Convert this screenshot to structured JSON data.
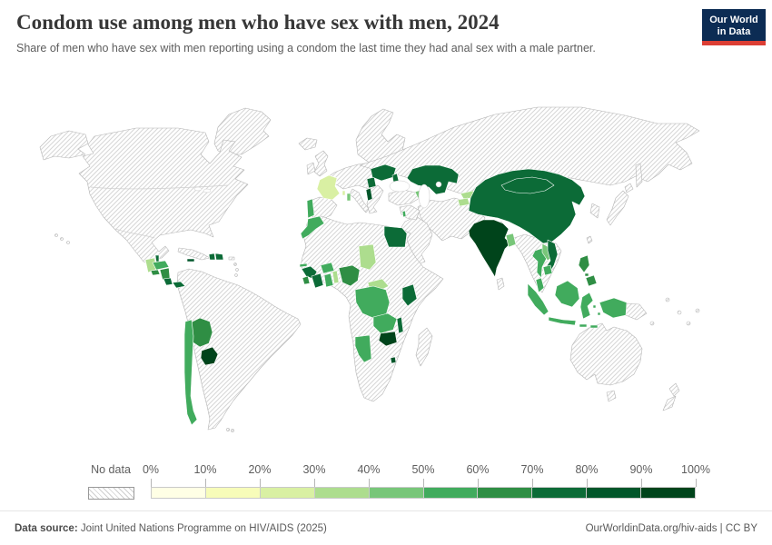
{
  "header": {
    "title": "Condom use among men who have sex with men, 2024",
    "subtitle": "Share of men who have sex with men reporting using a condom the last time they had anal sex with a male partner.",
    "logo": {
      "line1": "Our World",
      "line2": "in Data",
      "bg_color": "#0c2c54",
      "accent_color": "#dc3e34"
    }
  },
  "legend": {
    "no_data_label": "No data",
    "tick_labels": [
      "0%",
      "10%",
      "20%",
      "30%",
      "40%",
      "50%",
      "60%",
      "70%",
      "80%",
      "90%",
      "100%"
    ],
    "colors": [
      "#ffffe5",
      "#f7fcb9",
      "#d9f0a3",
      "#addd8e",
      "#78c679",
      "#41ab5d",
      "#2f8e44",
      "#0c6b37",
      "#02562a",
      "#00441b"
    ]
  },
  "footer": {
    "source_label": "Data source:",
    "source_text": " Joint United Nations Programme on HIV/AIDS (2025)",
    "credit": "OurWorldinData.org/hiv-aids | CC BY"
  },
  "chart_data": {
    "type": "choropleth",
    "title": "Condom use among men who have sex with men, 2024",
    "unit": "%",
    "bins": {
      "labels": [
        "0-10%",
        "10-20%",
        "20-30%",
        "30-40%",
        "40-50%",
        "50-60%",
        "60-70%",
        "70-80%",
        "80-90%",
        "90-100%"
      ],
      "colors": [
        "#ffffe5",
        "#f7fcb9",
        "#d9f0a3",
        "#addd8e",
        "#78c679",
        "#41ab5d",
        "#2f8e44",
        "#0c6b37",
        "#02562a",
        "#00441b"
      ],
      "no_data": "hatched"
    },
    "countries": [
      {
        "id": "france",
        "name": "France",
        "bin": "20-30%",
        "color": "#d9f0a3"
      },
      {
        "id": "sardinia",
        "name": "Sardinia (island)",
        "bin": "40-50%",
        "color": "#78c679"
      },
      {
        "id": "portugal",
        "name": "Portugal",
        "bin": "50-60%",
        "color": "#41ab5d"
      },
      {
        "id": "serbia",
        "name": "Serbia",
        "bin": "70-80%",
        "color": "#0c6b37"
      },
      {
        "id": "albania",
        "name": "Albania",
        "bin": "80-90%",
        "color": "#02562a"
      },
      {
        "id": "ukraine",
        "name": "Ukraine",
        "bin": "70-80%",
        "color": "#0c6b37"
      },
      {
        "id": "moldova",
        "name": "Moldova",
        "bin": "70-80%",
        "color": "#0c6b37"
      },
      {
        "id": "kazakhstan",
        "name": "Kazakhstan",
        "bin": "70-80%",
        "color": "#0c6b37"
      },
      {
        "id": "azerbaijan",
        "name": "Azerbaijan",
        "bin": "40-50%",
        "color": "#78c679"
      },
      {
        "id": "kyrgyzstan",
        "name": "Kyrgyzstan",
        "bin": "30-40%",
        "color": "#addd8e"
      },
      {
        "id": "tajikistan",
        "name": "Tajikistan",
        "bin": "30-40%",
        "color": "#addd8e"
      },
      {
        "id": "mongolia",
        "name": "Mongolia",
        "bin": "70-80%",
        "color": "#0c6b37"
      },
      {
        "id": "china",
        "name": "China",
        "bin": "70-80%",
        "color": "#0c6b37"
      },
      {
        "id": "india",
        "name": "India",
        "bin": "90-100%",
        "color": "#00441b"
      },
      {
        "id": "bangladesh",
        "name": "Bangladesh",
        "bin": "40-50%",
        "color": "#78c679"
      },
      {
        "id": "thailand",
        "name": "Thailand",
        "bin": "50-60%",
        "color": "#41ab5d"
      },
      {
        "id": "laos",
        "name": "Laos",
        "bin": "40-50%",
        "color": "#78c679"
      },
      {
        "id": "vietnam",
        "name": "Vietnam",
        "bin": "70-80%",
        "color": "#0c6b37"
      },
      {
        "id": "cambodia",
        "name": "Cambodia",
        "bin": "50-60%",
        "color": "#41ab5d"
      },
      {
        "id": "malaysia",
        "name": "Malaysia",
        "bin": "50-60%",
        "color": "#41ab5d"
      },
      {
        "id": "indonesia",
        "name": "Indonesia",
        "bin": "50-60%",
        "color": "#41ab5d"
      },
      {
        "id": "philippines",
        "name": "Philippines",
        "bin": "60-70%",
        "color": "#2f8e44"
      },
      {
        "id": "lebanon",
        "name": "Lebanon",
        "bin": "50-60%",
        "color": "#41ab5d"
      },
      {
        "id": "egypt",
        "name": "Egypt",
        "bin": "70-80%",
        "color": "#0c6b37"
      },
      {
        "id": "morocco",
        "name": "Morocco",
        "bin": "50-60%",
        "color": "#41ab5d"
      },
      {
        "id": "gambia",
        "name": "Gambia",
        "bin": "50-60%",
        "color": "#41ab5d"
      },
      {
        "id": "guinea",
        "name": "Guinea",
        "bin": "70-80%",
        "color": "#0c6b37"
      },
      {
        "id": "sierra-leone",
        "name": "Sierra Leone",
        "bin": "60-70%",
        "color": "#2f8e44"
      },
      {
        "id": "cote-divoire",
        "name": "Côte d'Ivoire",
        "bin": "70-80%",
        "color": "#0c6b37"
      },
      {
        "id": "ghana",
        "name": "Ghana",
        "bin": "50-60%",
        "color": "#41ab5d"
      },
      {
        "id": "burkina-faso",
        "name": "Burkina Faso",
        "bin": "50-60%",
        "color": "#41ab5d"
      },
      {
        "id": "togo",
        "name": "Togo",
        "bin": "30-40%",
        "color": "#addd8e"
      },
      {
        "id": "nigeria",
        "name": "Nigeria",
        "bin": "60-70%",
        "color": "#2f8e44"
      },
      {
        "id": "chad",
        "name": "Chad",
        "bin": "30-40%",
        "color": "#addd8e"
      },
      {
        "id": "central-african-republic",
        "name": "Central African Republic",
        "bin": "30-40%",
        "color": "#addd8e"
      },
      {
        "id": "dr-congo",
        "name": "Democratic Republic of Congo",
        "bin": "50-60%",
        "color": "#41ab5d"
      },
      {
        "id": "kenya",
        "name": "Kenya",
        "bin": "70-80%",
        "color": "#0c6b37"
      },
      {
        "id": "zambia",
        "name": "Zambia",
        "bin": "50-60%",
        "color": "#41ab5d"
      },
      {
        "id": "malawi",
        "name": "Malawi",
        "bin": "70-80%",
        "color": "#0c6b37"
      },
      {
        "id": "zimbabwe",
        "name": "Zimbabwe",
        "bin": "90-100%",
        "color": "#00441b"
      },
      {
        "id": "namibia",
        "name": "Namibia",
        "bin": "50-60%",
        "color": "#41ab5d"
      },
      {
        "id": "eswatini",
        "name": "Eswatini",
        "bin": "80-90%",
        "color": "#02562a"
      },
      {
        "id": "guatemala",
        "name": "Guatemala",
        "bin": "30-40%",
        "color": "#addd8e"
      },
      {
        "id": "belize",
        "name": "Belize",
        "bin": "70-80%",
        "color": "#0c6b37"
      },
      {
        "id": "honduras",
        "name": "Honduras",
        "bin": "50-60%",
        "color": "#41ab5d"
      },
      {
        "id": "el-salvador",
        "name": "El Salvador",
        "bin": "60-70%",
        "color": "#2f8e44"
      },
      {
        "id": "nicaragua",
        "name": "Nicaragua",
        "bin": "60-70%",
        "color": "#2f8e44"
      },
      {
        "id": "costa-rica",
        "name": "Costa Rica",
        "bin": "70-80%",
        "color": "#0c6b37"
      },
      {
        "id": "panama",
        "name": "Panama",
        "bin": "70-80%",
        "color": "#0c6b37"
      },
      {
        "id": "jamaica",
        "name": "Jamaica",
        "bin": "80-90%",
        "color": "#02562a"
      },
      {
        "id": "haiti",
        "name": "Haiti",
        "bin": "70-80%",
        "color": "#0c6b37"
      },
      {
        "id": "dominican-republic",
        "name": "Dominican Republic",
        "bin": "70-80%",
        "color": "#0c6b37"
      },
      {
        "id": "bolivia",
        "name": "Bolivia",
        "bin": "60-70%",
        "color": "#2f8e44"
      },
      {
        "id": "paraguay",
        "name": "Paraguay",
        "bin": "90-100%",
        "color": "#00441b"
      },
      {
        "id": "chile",
        "name": "Chile",
        "bin": "50-60%",
        "color": "#41ab5d"
      }
    ]
  }
}
